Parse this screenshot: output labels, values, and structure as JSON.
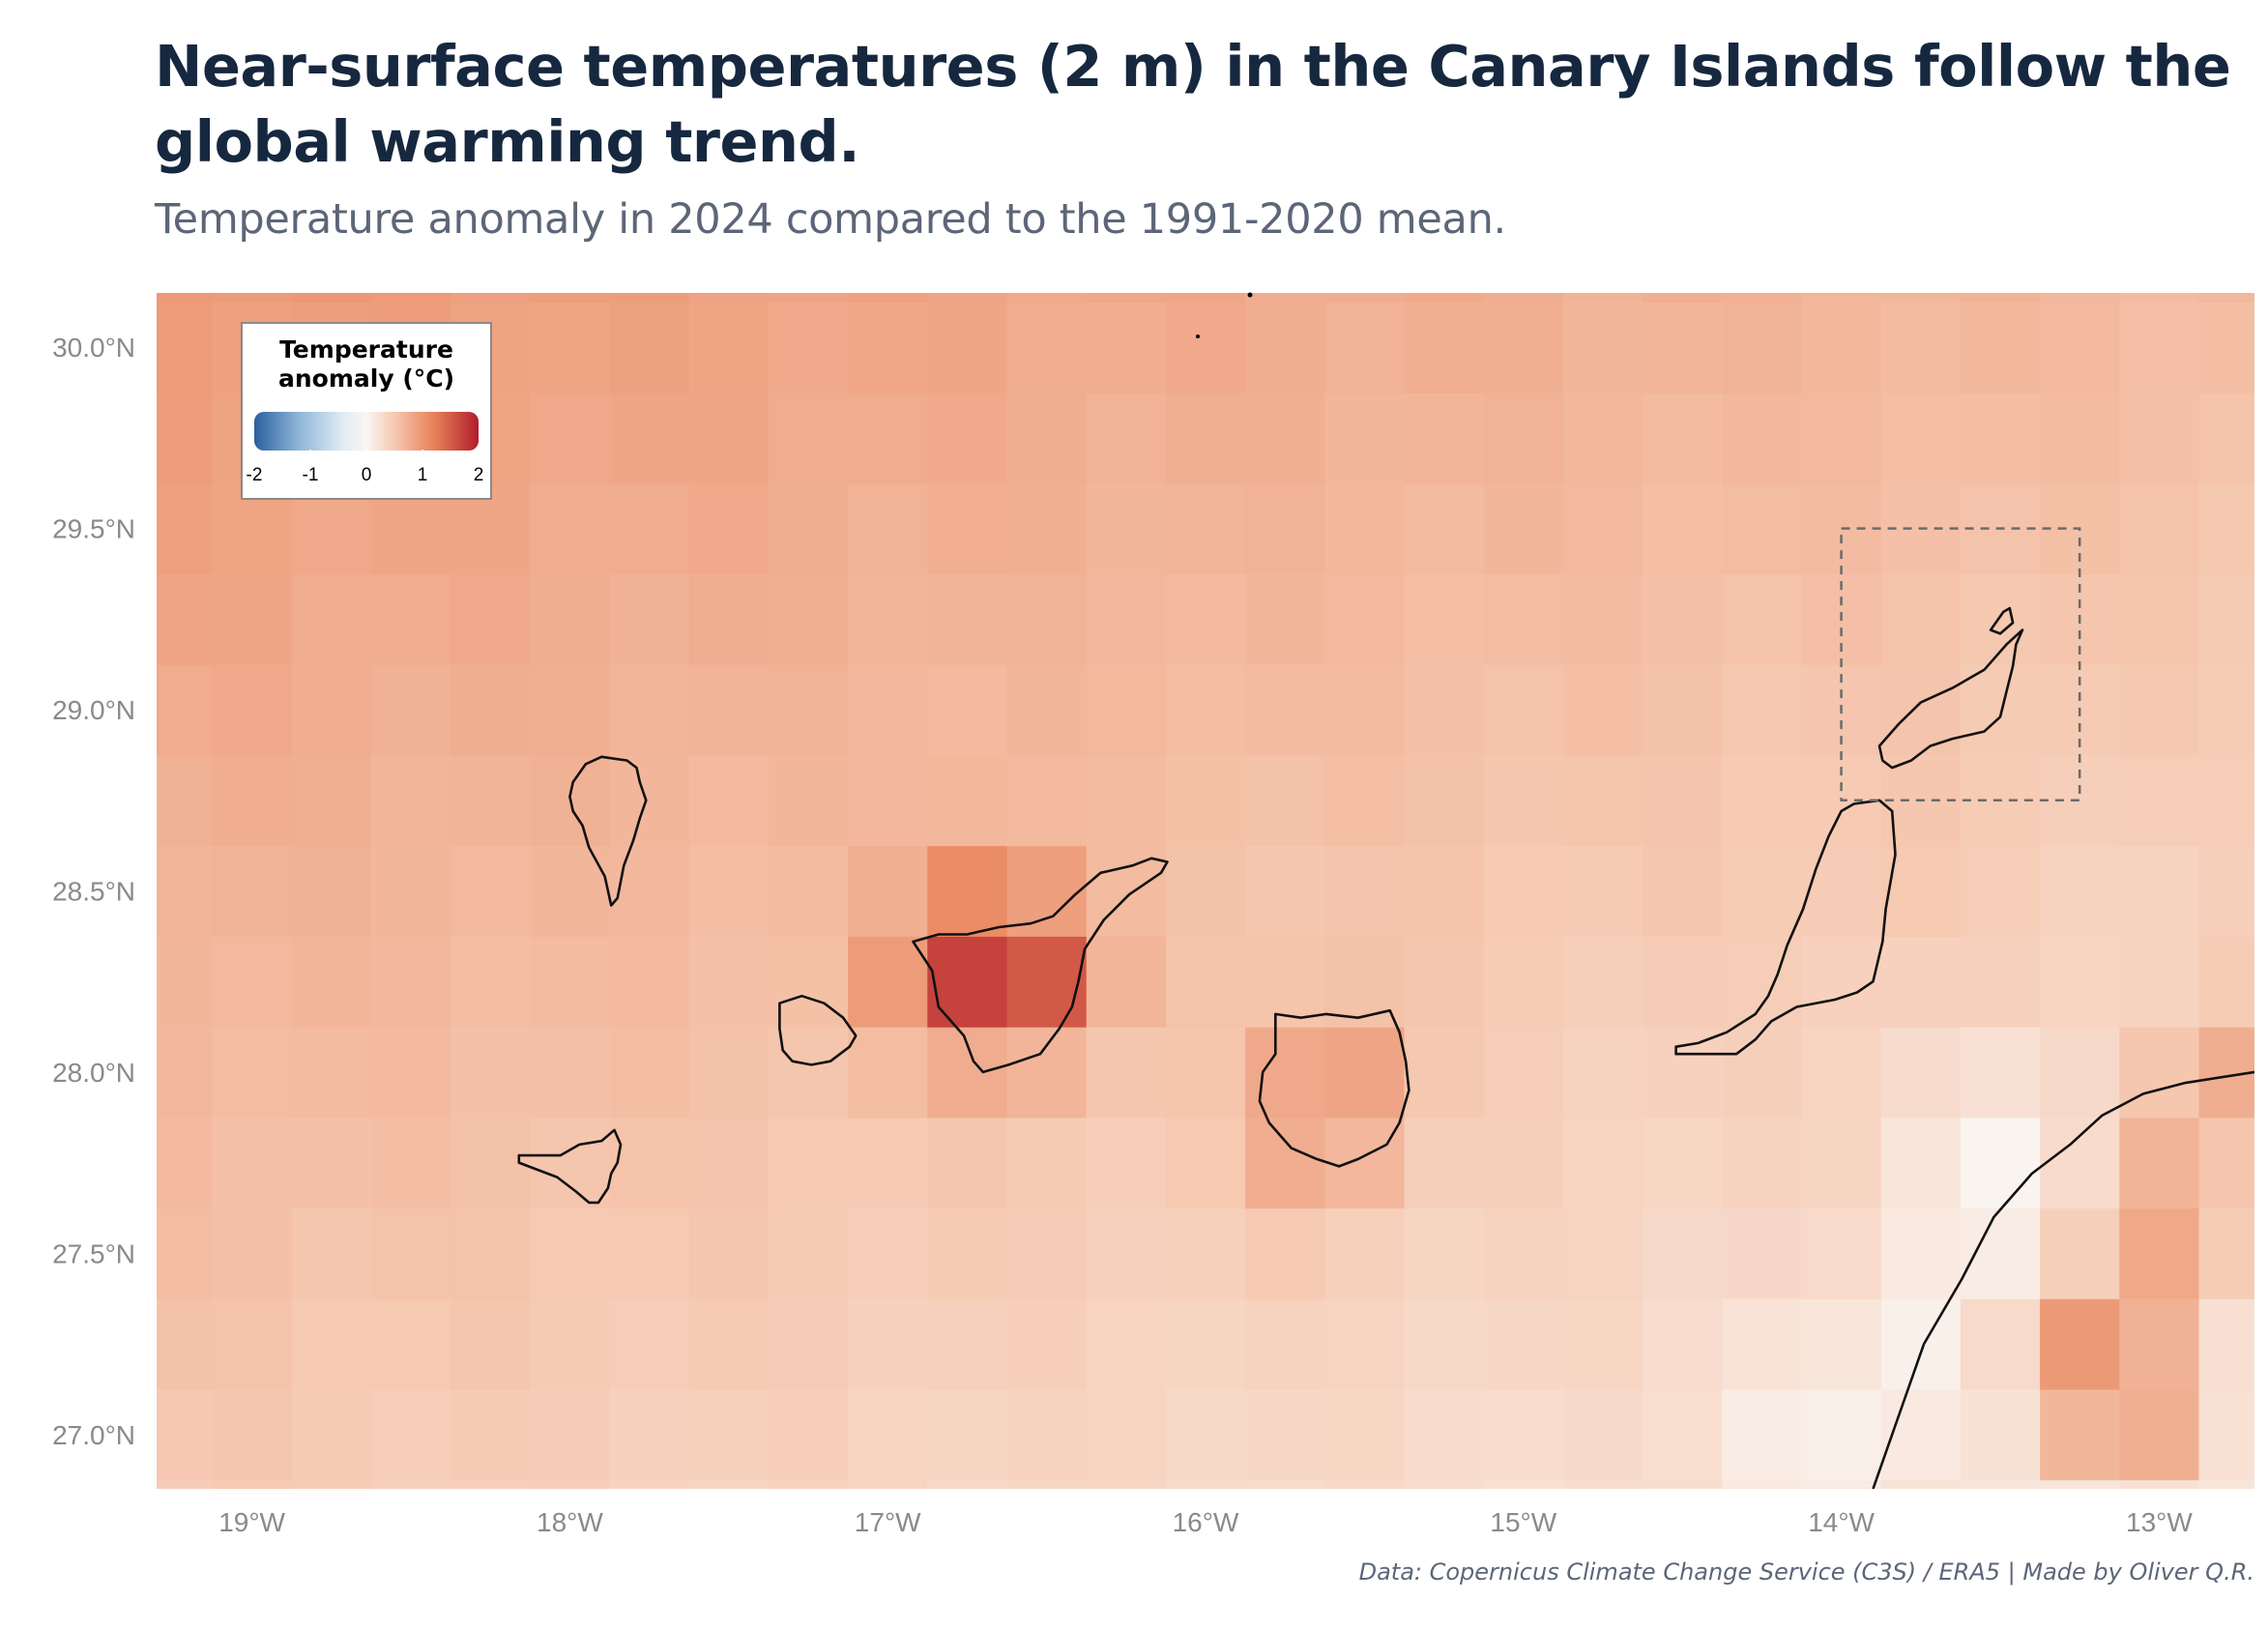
{
  "header": {
    "title": "Near-surface temperatures (2 m) in the Canary Islands follow the global warming trend.",
    "subtitle": "Temperature anomaly in 2024 compared to the 1991-2020 mean."
  },
  "footer": {
    "caption": "Data: Copernicus Climate Change Service (C3S) / ERA5 | Made by Oliver Q.R."
  },
  "map": {
    "lon_range": [
      -19.3,
      -12.7
    ],
    "lat_range": [
      26.85,
      30.15
    ],
    "cell_size_deg": 0.25,
    "x_ticks": [
      {
        "value": -19,
        "label": "19°W"
      },
      {
        "value": -18,
        "label": "18°W"
      },
      {
        "value": -17,
        "label": "17°W"
      },
      {
        "value": -16,
        "label": "16°W"
      },
      {
        "value": -15,
        "label": "15°W"
      },
      {
        "value": -14,
        "label": "14°W"
      },
      {
        "value": -13,
        "label": "13°W"
      }
    ],
    "y_ticks": [
      {
        "value": 30.0,
        "label": "30.0°N"
      },
      {
        "value": 29.5,
        "label": "29.5°N"
      },
      {
        "value": 29.0,
        "label": "29.0°N"
      },
      {
        "value": 28.5,
        "label": "28.5°N"
      },
      {
        "value": 28.0,
        "label": "28.0°N"
      },
      {
        "value": 27.5,
        "label": "27.5°N"
      },
      {
        "value": 27.0,
        "label": "27.0°N"
      }
    ],
    "highlight_box": {
      "lon": [
        -14.0,
        -13.25
      ],
      "lat": [
        28.75,
        29.5
      ]
    },
    "hot_spots": [
      {
        "lon": -16.55,
        "lat": 28.25,
        "value": 1.35
      },
      {
        "lon": -16.8,
        "lat": 28.25,
        "value": 1.15
      },
      {
        "lon": -16.7,
        "lat": 28.5,
        "value": 0.75
      },
      {
        "lon": -15.6,
        "lat": 28.0,
        "value": 0.9
      },
      {
        "lon": -15.65,
        "lat": 27.75,
        "value": 0.75
      },
      {
        "lon": -13.85,
        "lat": 28.5,
        "value": 0.5
      },
      {
        "lon": -12.95,
        "lat": 27.6,
        "value": 1.15
      },
      {
        "lon": -13.1,
        "lat": 27.1,
        "value": 1.25
      },
      {
        "lon": -13.3,
        "lat": 27.25,
        "value": 0.9
      },
      {
        "lon": -12.8,
        "lat": 28.0,
        "value": 0.9
      }
    ],
    "cool_spots": [
      {
        "lon": -13.5,
        "lat": 27.75,
        "value": 0.08
      },
      {
        "lon": -13.7,
        "lat": 27.25,
        "value": 0.18
      },
      {
        "lon": -14.1,
        "lat": 27.0,
        "value": 0.2
      }
    ],
    "islands": [
      {
        "name": "La Palma",
        "coords": [
          [
            -17.95,
            28.85
          ],
          [
            -17.9,
            28.87
          ],
          [
            -17.82,
            28.86
          ],
          [
            -17.79,
            28.84
          ],
          [
            -17.78,
            28.8
          ],
          [
            -17.76,
            28.75
          ],
          [
            -17.78,
            28.7
          ],
          [
            -17.8,
            28.64
          ],
          [
            -17.83,
            28.57
          ],
          [
            -17.85,
            28.48
          ],
          [
            -17.87,
            28.46
          ],
          [
            -17.89,
            28.54
          ],
          [
            -17.94,
            28.62
          ],
          [
            -17.96,
            28.68
          ],
          [
            -17.99,
            28.72
          ],
          [
            -18.0,
            28.76
          ],
          [
            -17.99,
            28.8
          ]
        ]
      },
      {
        "name": "El Hierro",
        "coords": [
          [
            -18.16,
            27.75
          ],
          [
            -18.1,
            27.73
          ],
          [
            -18.04,
            27.71
          ],
          [
            -17.98,
            27.67
          ],
          [
            -17.94,
            27.64
          ],
          [
            -17.91,
            27.64
          ],
          [
            -17.88,
            27.68
          ],
          [
            -17.87,
            27.72
          ],
          [
            -17.85,
            27.75
          ],
          [
            -17.84,
            27.8
          ],
          [
            -17.86,
            27.84
          ],
          [
            -17.9,
            27.81
          ],
          [
            -17.97,
            27.8
          ],
          [
            -18.03,
            27.77
          ],
          [
            -18.1,
            27.77
          ],
          [
            -18.16,
            27.77
          ]
        ]
      },
      {
        "name": "La Gomera",
        "coords": [
          [
            -17.34,
            28.19
          ],
          [
            -17.27,
            28.21
          ],
          [
            -17.2,
            28.19
          ],
          [
            -17.14,
            28.15
          ],
          [
            -17.1,
            28.1
          ],
          [
            -17.12,
            28.07
          ],
          [
            -17.18,
            28.03
          ],
          [
            -17.24,
            28.02
          ],
          [
            -17.3,
            28.03
          ],
          [
            -17.33,
            28.06
          ],
          [
            -17.34,
            28.12
          ]
        ]
      },
      {
        "name": "Tenerife",
        "coords": [
          [
            -16.92,
            28.36
          ],
          [
            -16.84,
            28.38
          ],
          [
            -16.75,
            28.38
          ],
          [
            -16.65,
            28.4
          ],
          [
            -16.55,
            28.41
          ],
          [
            -16.48,
            28.43
          ],
          [
            -16.41,
            28.49
          ],
          [
            -16.33,
            28.55
          ],
          [
            -16.23,
            28.57
          ],
          [
            -16.17,
            28.59
          ],
          [
            -16.12,
            28.58
          ],
          [
            -16.14,
            28.55
          ],
          [
            -16.24,
            28.49
          ],
          [
            -16.32,
            28.42
          ],
          [
            -16.38,
            28.34
          ],
          [
            -16.4,
            28.25
          ],
          [
            -16.42,
            28.18
          ],
          [
            -16.46,
            28.12
          ],
          [
            -16.52,
            28.05
          ],
          [
            -16.62,
            28.02
          ],
          [
            -16.7,
            28.0
          ],
          [
            -16.73,
            28.03
          ],
          [
            -16.76,
            28.1
          ],
          [
            -16.84,
            28.18
          ],
          [
            -16.86,
            28.28
          ]
        ]
      },
      {
        "name": "Gran Canaria",
        "coords": [
          [
            -15.78,
            28.16
          ],
          [
            -15.7,
            28.15
          ],
          [
            -15.62,
            28.16
          ],
          [
            -15.52,
            28.15
          ],
          [
            -15.42,
            28.17
          ],
          [
            -15.39,
            28.11
          ],
          [
            -15.37,
            28.03
          ],
          [
            -15.36,
            27.95
          ],
          [
            -15.39,
            27.86
          ],
          [
            -15.43,
            27.8
          ],
          [
            -15.52,
            27.76
          ],
          [
            -15.58,
            27.74
          ],
          [
            -15.65,
            27.76
          ],
          [
            -15.73,
            27.79
          ],
          [
            -15.8,
            27.86
          ],
          [
            -15.83,
            27.92
          ],
          [
            -15.82,
            28.0
          ],
          [
            -15.78,
            28.05
          ]
        ]
      },
      {
        "name": "Fuerteventura",
        "coords": [
          [
            -14.52,
            28.07
          ],
          [
            -14.45,
            28.08
          ],
          [
            -14.36,
            28.11
          ],
          [
            -14.27,
            28.16
          ],
          [
            -14.23,
            28.21
          ],
          [
            -14.2,
            28.27
          ],
          [
            -14.17,
            28.35
          ],
          [
            -14.12,
            28.45
          ],
          [
            -14.08,
            28.56
          ],
          [
            -14.04,
            28.65
          ],
          [
            -14.0,
            28.72
          ],
          [
            -13.96,
            28.74
          ],
          [
            -13.88,
            28.75
          ],
          [
            -13.84,
            28.72
          ],
          [
            -13.83,
            28.6
          ],
          [
            -13.86,
            28.45
          ],
          [
            -13.87,
            28.36
          ],
          [
            -13.9,
            28.25
          ],
          [
            -13.95,
            28.22
          ],
          [
            -14.02,
            28.2
          ],
          [
            -14.14,
            28.18
          ],
          [
            -14.22,
            28.14
          ],
          [
            -14.27,
            28.09
          ],
          [
            -14.33,
            28.05
          ],
          [
            -14.42,
            28.05
          ],
          [
            -14.52,
            28.05
          ]
        ]
      },
      {
        "name": "Lanzarote",
        "coords": [
          [
            -13.88,
            28.9
          ],
          [
            -13.82,
            28.96
          ],
          [
            -13.75,
            29.02
          ],
          [
            -13.65,
            29.06
          ],
          [
            -13.55,
            29.11
          ],
          [
            -13.48,
            29.18
          ],
          [
            -13.43,
            29.22
          ],
          [
            -13.45,
            29.18
          ],
          [
            -13.46,
            29.12
          ],
          [
            -13.48,
            29.05
          ],
          [
            -13.5,
            28.98
          ],
          [
            -13.55,
            28.94
          ],
          [
            -13.65,
            28.92
          ],
          [
            -13.72,
            28.9
          ],
          [
            -13.78,
            28.86
          ],
          [
            -13.84,
            28.84
          ],
          [
            -13.87,
            28.86
          ]
        ]
      },
      {
        "name": "La Graciosa",
        "coords": [
          [
            -13.53,
            29.22
          ],
          [
            -13.49,
            29.27
          ],
          [
            -13.47,
            29.28
          ],
          [
            -13.46,
            29.24
          ],
          [
            -13.5,
            29.21
          ]
        ]
      },
      {
        "name": "African coast",
        "open": true,
        "coords": [
          [
            -13.9,
            26.85
          ],
          [
            -13.82,
            27.05
          ],
          [
            -13.74,
            27.25
          ],
          [
            -13.62,
            27.43
          ],
          [
            -13.52,
            27.6
          ],
          [
            -13.4,
            27.72
          ],
          [
            -13.28,
            27.8
          ],
          [
            -13.18,
            27.88
          ],
          [
            -13.05,
            27.94
          ],
          [
            -12.92,
            27.97
          ],
          [
            -12.7,
            28.0
          ]
        ]
      }
    ]
  },
  "legend": {
    "title_line1": "Temperature",
    "title_line2": "anomaly (°C)",
    "ticks": [
      {
        "value": -2,
        "label": "-2"
      },
      {
        "value": -1,
        "label": "-1"
      },
      {
        "value": 0,
        "label": "0"
      },
      {
        "value": 1,
        "label": "1"
      },
      {
        "value": 2,
        "label": "2"
      }
    ]
  }
}
